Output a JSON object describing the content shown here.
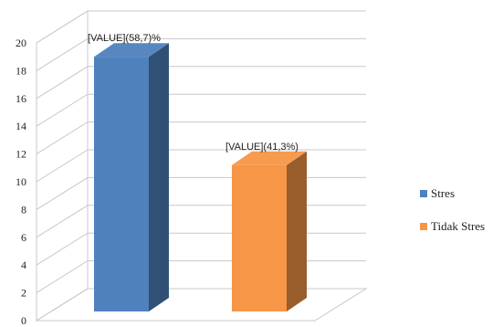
{
  "chart_data": {
    "type": "bar",
    "title": "",
    "xlabel": "",
    "ylabel": "",
    "ylim": [
      0,
      20
    ],
    "yticks": [
      0,
      2,
      4,
      6,
      8,
      10,
      12,
      14,
      16,
      18,
      20
    ],
    "grid": true,
    "three_d": true,
    "categories": [
      "Stres",
      "Tidak Stres"
    ],
    "values": [
      19,
      11.2
    ],
    "data_labels": [
      "[VALUE](58,7)%",
      "[VALUE](41,3%)"
    ],
    "colors": [
      "#4f81bd",
      "#f79646"
    ],
    "legend": {
      "position": "right",
      "entries": [
        {
          "label": "Stres",
          "color": "#4f81bd"
        },
        {
          "label": "Tidak Stres",
          "color": "#f79646"
        }
      ]
    }
  }
}
